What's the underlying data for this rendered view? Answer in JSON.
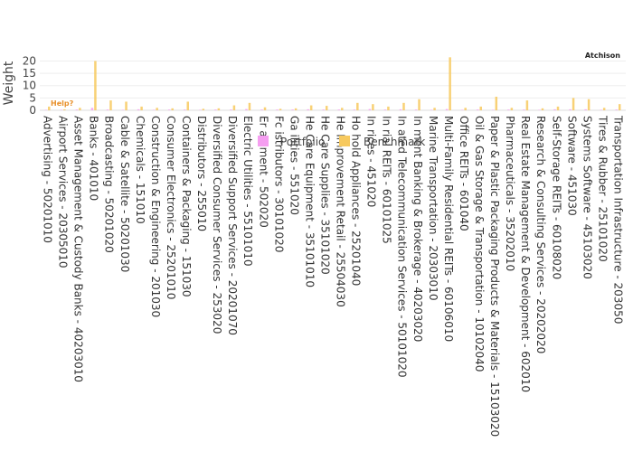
{
  "brand": "Atchison",
  "help_label": "Help?",
  "colors": {
    "portfolio": "#f59ef0",
    "benchmark": "#f7c95e",
    "gridline": "#eeeeee",
    "zeroline": "#dddddd",
    "help": "#e8912b"
  },
  "legend": {
    "portfolio_label": "Portfolio",
    "benchmark_label": "Benchmark"
  },
  "chart_data": {
    "type": "bar",
    "ylabel": "Weight",
    "xlabel": "",
    "ylim": [
      0,
      22
    ],
    "yticks": [
      0,
      5,
      10,
      15,
      20
    ],
    "grid": true,
    "legend_position": "top-center",
    "categories": [
      "Advertising - 50201010",
      "Airport Services - 20305010",
      "Asset Management & Custody Banks - 40203010",
      "Banks - 401010",
      "Broadcasting - 50201020",
      "Cable & Satellite - 50201030",
      "Chemicals - 151010",
      "Construction & Engineering - 201030",
      "Consumer Electronics - 25201010",
      "Containers & Packaging - 151030",
      "Distributors - 255010",
      "Diversified Consumer Services - 253020",
      "Diversified Support Services - 20201070",
      "Electric Utilities - 55101010",
      "Er   ainment - 502020",
      "Fc      istributors - 30101020",
      "Ga   ilities - 551020",
      "He        Care Equipment - 35101010",
      "He       Care Supplies - 35101020",
      "He   Improvement Retail - 25504030",
      "Ho   hold Appliances - 25201040",
      "In          rices - 451020",
      "In     rial REITs - 60101025",
      "In      ated Telecommunication Services - 50101020",
      "In      ment Banking & Brokerage - 40203020",
      "Marine Transportation - 20303010",
      "Multi-Family Residential REITs - 60106010",
      "Office REITs - 601040",
      "Oil & Gas Storage & Transportation - 10102040",
      "Paper & Plastic Packaging Products & Materials - 15103020",
      "Pharmaceuticals - 35202010",
      "Real Estate Management & Development - 602010",
      "Research & Consulting Services - 20202020",
      "Self-Storage REITs - 60108020",
      "Software - 451030",
      "Systems Software - 45103020",
      "Tires & Rubber - 25101020",
      "Transportation Infrastructure - 203050"
    ],
    "series": [
      {
        "name": "Portfolio",
        "values": [
          0.2,
          0.2,
          0.3,
          1.0,
          0.3,
          0.2,
          0.4,
          0.2,
          0.3,
          0.3,
          0.2,
          0.3,
          0.3,
          0.5,
          0.3,
          0.3,
          0.3,
          0.4,
          0.3,
          0.3,
          0.3,
          0.5,
          0.3,
          0.4,
          0.3,
          0.2,
          0.5,
          0.2,
          0.3,
          0.2,
          0.3,
          0.3,
          0.2,
          0.4,
          0.4,
          0.4,
          0.2,
          0.3
        ]
      },
      {
        "name": "Benchmark",
        "values": [
          1.5,
          0.4,
          1.0,
          20.0,
          4.0,
          3.5,
          1.5,
          1.0,
          0.8,
          3.5,
          0.6,
          0.8,
          2.0,
          3.0,
          1.2,
          0.6,
          0.8,
          2.0,
          1.8,
          1.0,
          3.0,
          2.5,
          1.5,
          3.0,
          4.5,
          1.0,
          21.5,
          1.0,
          1.5,
          5.5,
          1.0,
          4.0,
          0.8,
          1.5,
          5.0,
          4.5,
          1.0,
          2.5
        ]
      }
    ]
  }
}
